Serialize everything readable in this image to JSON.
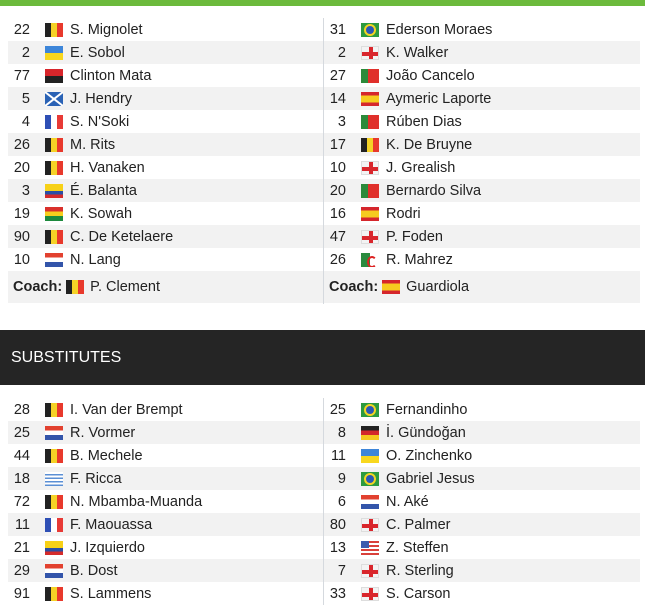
{
  "colors": {
    "accent": "#6cba3c",
    "header_bg": "#252525"
  },
  "lineups": {
    "home": [
      {
        "num": "22",
        "flag": "bel",
        "name": "S. Mignolet"
      },
      {
        "num": "2",
        "flag": "ukr",
        "name": "E. Sobol"
      },
      {
        "num": "77",
        "flag": "ang",
        "name": "Clinton Mata"
      },
      {
        "num": "5",
        "flag": "sco",
        "name": "J. Hendry"
      },
      {
        "num": "4",
        "flag": "fra",
        "name": "S. N'Soki"
      },
      {
        "num": "26",
        "flag": "bel",
        "name": "M. Rits"
      },
      {
        "num": "20",
        "flag": "bel",
        "name": "H. Vanaken"
      },
      {
        "num": "3",
        "flag": "col",
        "name": "É. Balanta"
      },
      {
        "num": "19",
        "flag": "gha",
        "name": "K. Sowah"
      },
      {
        "num": "90",
        "flag": "bel",
        "name": "C. De Ketelaere"
      },
      {
        "num": "10",
        "flag": "ned",
        "name": "N. Lang"
      }
    ],
    "away": [
      {
        "num": "31",
        "flag": "bra",
        "name": "Ederson Moraes"
      },
      {
        "num": "2",
        "flag": "eng",
        "name": "K. Walker"
      },
      {
        "num": "27",
        "flag": "por",
        "name": "João Cancelo"
      },
      {
        "num": "14",
        "flag": "esp",
        "name": "Aymeric Laporte"
      },
      {
        "num": "3",
        "flag": "por",
        "name": "Rúben Dias"
      },
      {
        "num": "17",
        "flag": "bel",
        "name": "K. De Bruyne"
      },
      {
        "num": "10",
        "flag": "eng",
        "name": "J. Grealish"
      },
      {
        "num": "20",
        "flag": "por",
        "name": "Bernardo Silva"
      },
      {
        "num": "16",
        "flag": "esp",
        "name": "Rodri"
      },
      {
        "num": "47",
        "flag": "eng",
        "name": "P. Foden"
      },
      {
        "num": "26",
        "flag": "alg",
        "name": "R. Mahrez"
      }
    ]
  },
  "coaches": {
    "label": "Coach:",
    "home": {
      "flag": "bel",
      "name": "P. Clement"
    },
    "away": {
      "flag": "esp",
      "name": "Guardiola"
    }
  },
  "substitutes": {
    "title": "SUBSTITUTES",
    "home": [
      {
        "num": "28",
        "flag": "bel",
        "name": "I. Van der Brempt"
      },
      {
        "num": "25",
        "flag": "ned",
        "name": "R. Vormer"
      },
      {
        "num": "44",
        "flag": "bel",
        "name": "B. Mechele"
      },
      {
        "num": "18",
        "flag": "uru",
        "name": "F. Ricca"
      },
      {
        "num": "72",
        "flag": "bel",
        "name": "N. Mbamba-Muanda"
      },
      {
        "num": "11",
        "flag": "fra",
        "name": "F. Maouassa"
      },
      {
        "num": "21",
        "flag": "col",
        "name": "J. Izquierdo"
      },
      {
        "num": "29",
        "flag": "ned",
        "name": "B. Dost"
      },
      {
        "num": "91",
        "flag": "bel",
        "name": "S. Lammens"
      }
    ],
    "away": [
      {
        "num": "25",
        "flag": "bra",
        "name": "Fernandinho"
      },
      {
        "num": "8",
        "flag": "ger",
        "name": "İ. Gündoğan"
      },
      {
        "num": "11",
        "flag": "ukr",
        "name": "O. Zinchenko"
      },
      {
        "num": "9",
        "flag": "bra",
        "name": "Gabriel Jesus"
      },
      {
        "num": "6",
        "flag": "ned",
        "name": "N. Aké"
      },
      {
        "num": "80",
        "flag": "eng",
        "name": "C. Palmer"
      },
      {
        "num": "13",
        "flag": "usa",
        "name": "Z. Steffen"
      },
      {
        "num": "7",
        "flag": "eng",
        "name": "R. Sterling"
      },
      {
        "num": "33",
        "flag": "eng",
        "name": "S. Carson"
      }
    ]
  }
}
